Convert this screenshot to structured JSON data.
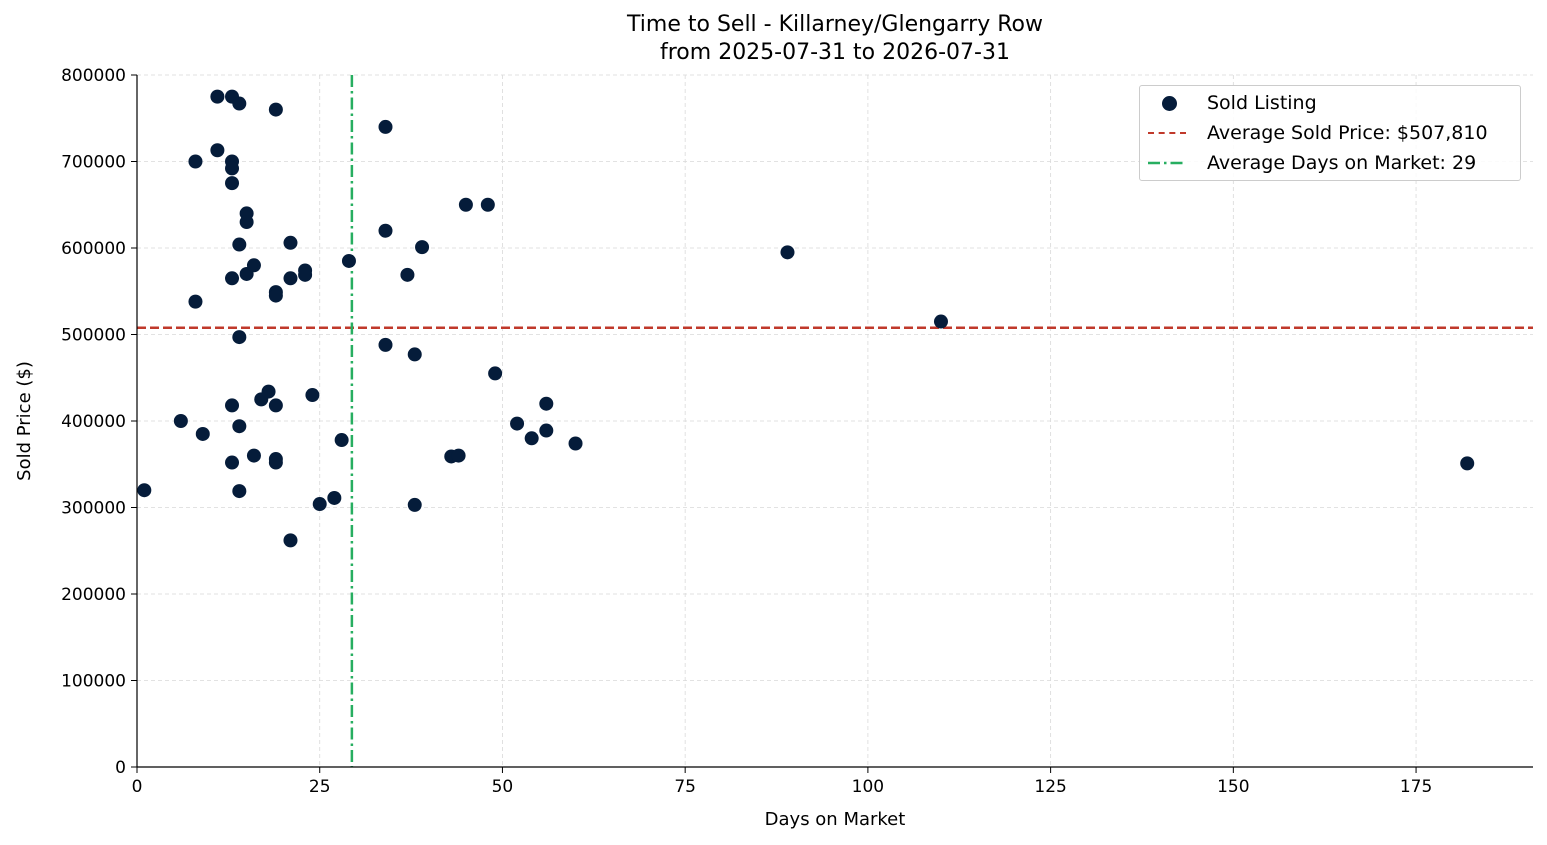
{
  "title_line1": "Time to Sell - Killarney/Glengarry Row",
  "title_line2": "from 2025-07-31 to 2026-07-31",
  "legend": {
    "scatter_label": "Sold Listing",
    "avg_price_label": "Average Sold Price: $507,810",
    "avg_days_label": "Average Days on Market: 29"
  },
  "colors": {
    "points": "#051c3a",
    "avg_price_line": "#c0392b",
    "avg_days_line": "#27ae60",
    "grid": "#d9d9d9"
  },
  "chart_data": {
    "type": "scatter",
    "xlabel": "Days on Market",
    "ylabel": "Sold Price ($)",
    "xlim": [
      0,
      191
    ],
    "ylim": [
      0,
      800000
    ],
    "x_ticks": [
      0,
      25,
      50,
      75,
      100,
      125,
      150,
      175
    ],
    "y_ticks": [
      0,
      100000,
      200000,
      300000,
      400000,
      500000,
      600000,
      700000,
      800000
    ],
    "grid": true,
    "legend_position": "top-right",
    "avg_sold_price": 507810,
    "avg_days_on_market": 29.4,
    "series": [
      {
        "name": "Sold Listing",
        "points": [
          [
            1,
            320000
          ],
          [
            6,
            400000
          ],
          [
            8,
            700000
          ],
          [
            8,
            538000
          ],
          [
            9,
            385000
          ],
          [
            11,
            775000
          ],
          [
            11,
            713000
          ],
          [
            13,
            775000
          ],
          [
            13,
            700000
          ],
          [
            13,
            692000
          ],
          [
            13,
            675000
          ],
          [
            13,
            565000
          ],
          [
            13,
            418000
          ],
          [
            13,
            352000
          ],
          [
            14,
            767000
          ],
          [
            14,
            604000
          ],
          [
            14,
            497000
          ],
          [
            14,
            394000
          ],
          [
            14,
            319000
          ],
          [
            15,
            640000
          ],
          [
            15,
            630000
          ],
          [
            15,
            570000
          ],
          [
            16,
            580000
          ],
          [
            16,
            360000
          ],
          [
            17,
            425000
          ],
          [
            18,
            434000
          ],
          [
            19,
            760000
          ],
          [
            19,
            549000
          ],
          [
            19,
            545000
          ],
          [
            19,
            418000
          ],
          [
            19,
            356000
          ],
          [
            19,
            352000
          ],
          [
            21,
            606000
          ],
          [
            21,
            565000
          ],
          [
            21,
            262000
          ],
          [
            23,
            574000
          ],
          [
            23,
            569000
          ],
          [
            24,
            430000
          ],
          [
            25,
            304000
          ],
          [
            27,
            311000
          ],
          [
            28,
            378000
          ],
          [
            29,
            585000
          ],
          [
            34,
            740000
          ],
          [
            34,
            620000
          ],
          [
            34,
            488000
          ],
          [
            37,
            569000
          ],
          [
            38,
            477000
          ],
          [
            38,
            303000
          ],
          [
            39,
            601000
          ],
          [
            43,
            359000
          ],
          [
            44,
            360000
          ],
          [
            45,
            650000
          ],
          [
            48,
            650000
          ],
          [
            49,
            455000
          ],
          [
            52,
            397000
          ],
          [
            54,
            380000
          ],
          [
            56,
            420000
          ],
          [
            56,
            389000
          ],
          [
            60,
            374000
          ],
          [
            89,
            595000
          ],
          [
            110,
            515000
          ],
          [
            182,
            351000
          ]
        ]
      }
    ]
  }
}
